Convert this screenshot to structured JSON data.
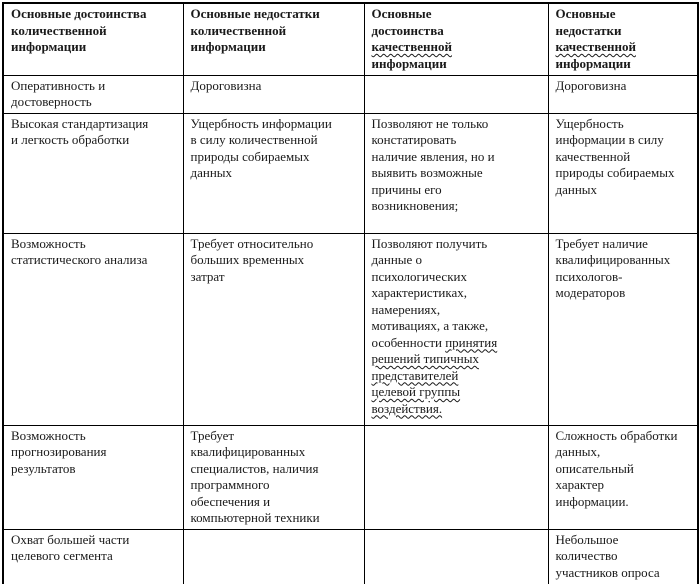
{
  "colors": {
    "background": "#ffffff",
    "border": "#000000",
    "text": "#1a1a1a"
  },
  "table": {
    "headers": [
      {
        "segments": [
          {
            "text": "Основные достоинства\nколичественной\nинформации",
            "wavy": false
          }
        ]
      },
      {
        "segments": [
          {
            "text": "Основные недостатки\nколичественной\nинформации",
            "wavy": false
          }
        ]
      },
      {
        "segments": [
          {
            "text": "Основные\nдостоинства\n",
            "wavy": false
          },
          {
            "text": "качественной",
            "wavy": true
          },
          {
            "text": "\nинформации",
            "wavy": false
          }
        ]
      },
      {
        "segments": [
          {
            "text": "Основные\nнедостатки\n",
            "wavy": false
          },
          {
            "text": "качественной",
            "wavy": true
          },
          {
            "text": "\nинформации",
            "wavy": false
          }
        ]
      }
    ],
    "rows": [
      {
        "cells": [
          {
            "segments": [
              {
                "text": "Оперативность и\nдостоверность",
                "wavy": false
              }
            ]
          },
          {
            "segments": [
              {
                "text": "Дороговизна",
                "wavy": false
              }
            ]
          },
          {
            "segments": []
          },
          {
            "segments": [
              {
                "text": "Дороговизна",
                "wavy": false
              }
            ]
          }
        ]
      },
      {
        "cells": [
          {
            "segments": [
              {
                "text": "Высокая стандартизация\nи легкость обработки",
                "wavy": false
              }
            ]
          },
          {
            "segments": [
              {
                "text": "Ущербность информации\nв силу количественной\nприроды собираемых\nданных",
                "wavy": false
              }
            ]
          },
          {
            "segments": [
              {
                "text": "Позволяют не только\nконстатировать\nналичие явления, но и\nвыявить возможные\nпричины его\nвозникновения;",
                "wavy": false
              }
            ]
          },
          {
            "segments": [
              {
                "text": "Ущербность\nинформации в силу\nкачественной\nприроды собираемых\nданных",
                "wavy": false
              }
            ]
          }
        ]
      },
      {
        "cells": [
          {
            "segments": [
              {
                "text": "Возможность\nстатистического анализа",
                "wavy": false
              }
            ]
          },
          {
            "segments": [
              {
                "text": "Требует относительно\nбольших временных\nзатрат",
                "wavy": false
              }
            ]
          },
          {
            "segments": [
              {
                "text": "Позволяют получить\nданные о\nпсихологических\nхарактеристиках,\nнамерениях,\nмотивациях, а также,\nособенности ",
                "wavy": false
              },
              {
                "text": "принятия\nрешений типичных\nпредставителей\nцелевой группы\nвоздействия.",
                "wavy": true
              }
            ]
          },
          {
            "segments": [
              {
                "text": "Требует наличие\nквалифицированных\nпсихологов-\nмодераторов",
                "wavy": false
              }
            ]
          }
        ]
      },
      {
        "cells": [
          {
            "segments": [
              {
                "text": "Возможность\nпрогнозирования\nрезультатов",
                "wavy": false
              }
            ]
          },
          {
            "segments": [
              {
                "text": "Требует\nквалифицированных\nспециалистов, наличия\nпрограммного\nобеспечения и\nкомпьютерной техники",
                "wavy": false
              }
            ]
          },
          {
            "segments": []
          },
          {
            "segments": [
              {
                "text": "Сложность обработки\nданных,\nописательный\nхарактер\nинформации.",
                "wavy": false
              }
            ]
          }
        ]
      },
      {
        "cells": [
          {
            "segments": [
              {
                "text": "Охват большей части\nцелевого сегмента",
                "wavy": false
              }
            ]
          },
          {
            "segments": []
          },
          {
            "segments": []
          },
          {
            "segments": [
              {
                "text": "Небольшое\nколичество\nучастников опроса",
                "wavy": false
              }
            ]
          }
        ]
      }
    ]
  }
}
